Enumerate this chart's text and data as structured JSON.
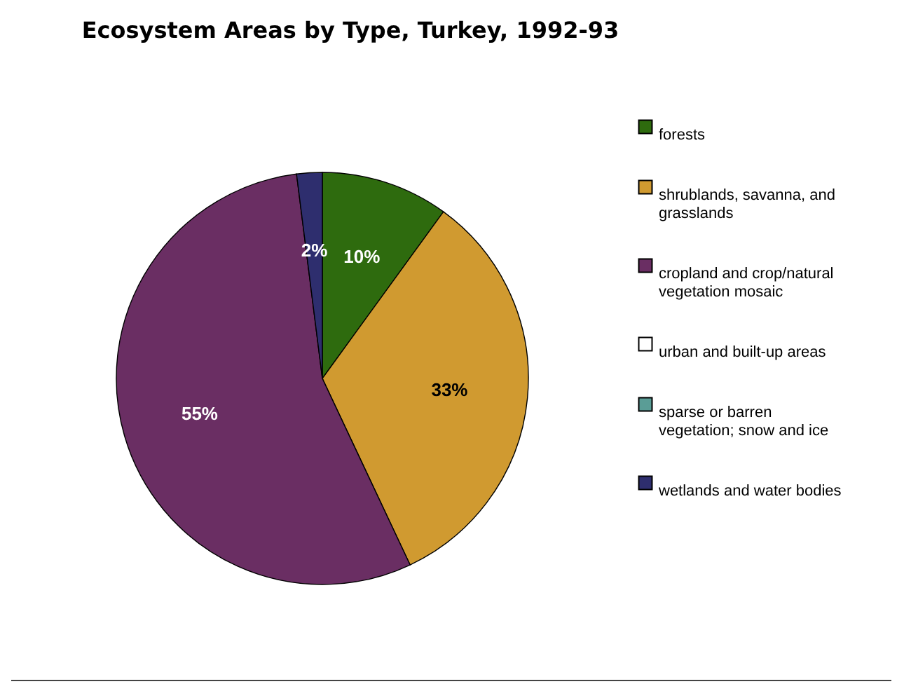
{
  "chart_data": {
    "type": "pie",
    "title": "Ecosystem Areas by Type, Turkey, 1992-93",
    "categories": [
      "forests",
      "shrublands, savanna, and grasslands",
      "cropland and crop/natural vegetation mosaic",
      "urban and built-up areas",
      "sparse or barren vegetation; snow and ice",
      "wetlands and water bodies"
    ],
    "values": [
      10,
      33,
      55,
      0,
      0,
      2
    ],
    "colors": [
      "#2e6b0e",
      "#d09a30",
      "#6a2e63",
      "#ffffff",
      "#5a9d96",
      "#2e2e6e"
    ],
    "value_labels": [
      "10%",
      "33%",
      "55%",
      null,
      null,
      "2%"
    ],
    "legend": "right"
  }
}
